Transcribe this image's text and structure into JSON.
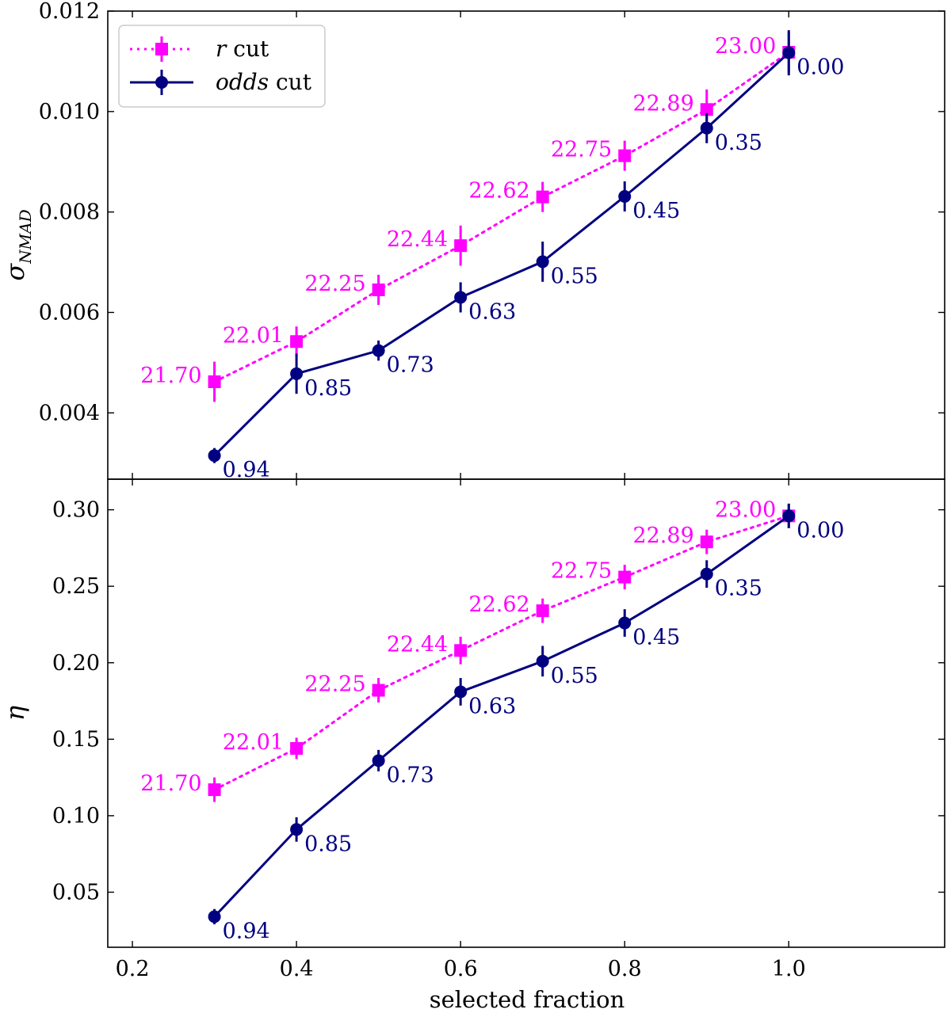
{
  "chart_data": [
    {
      "type": "line",
      "panel": "top",
      "ylabel_symbol": "σ",
      "ylabel_subscript": "NMAD",
      "xlim": [
        0.17,
        1.19
      ],
      "ylim": [
        0.00268,
        0.012
      ],
      "yticks": [
        0.004,
        0.006,
        0.008,
        0.01,
        0.012
      ],
      "ytick_labels": [
        "0.004",
        "0.006",
        "0.008",
        "0.010",
        "0.012"
      ],
      "xticks": [
        0.2,
        0.4,
        0.6,
        0.8,
        1.0
      ],
      "legend": {
        "location": "upper-left",
        "entries": [
          {
            "series": "r",
            "prefix": "r",
            "suffix": " cut"
          },
          {
            "series": "odds",
            "prefix": "odds",
            "suffix": " cut"
          }
        ]
      },
      "series": [
        {
          "name": "r cut",
          "color": "#ff00ff",
          "marker": "square",
          "linestyle": "dotted",
          "x": [
            0.3,
            0.4,
            0.5,
            0.6,
            0.7,
            0.8,
            0.9,
            1.0
          ],
          "y": [
            0.00462,
            0.00542,
            0.00645,
            0.00733,
            0.0083,
            0.00912,
            0.01004,
            0.01118
          ],
          "yerr": [
            0.0004,
            0.0003,
            0.0003,
            0.0004,
            0.0003,
            0.0003,
            0.0004,
            0.0004
          ],
          "labels": [
            "21.70",
            "22.01",
            "22.25",
            "22.44",
            "22.62",
            "22.75",
            "22.89",
            "23.00"
          ]
        },
        {
          "name": "odds cut",
          "color": "#000080",
          "marker": "circle",
          "linestyle": "solid",
          "x": [
            0.3,
            0.4,
            0.5,
            0.6,
            0.7,
            0.8,
            0.9,
            1.0
          ],
          "y": [
            0.00315,
            0.00478,
            0.00524,
            0.0063,
            0.00701,
            0.00831,
            0.00967,
            0.01117
          ],
          "yerr": [
            0.00015,
            0.0004,
            0.0002,
            0.0003,
            0.0004,
            0.0003,
            0.0003,
            0.00045
          ],
          "labels": [
            "0.94",
            "0.85",
            "0.73",
            "0.63",
            "0.55",
            "0.45",
            "0.35",
            "0.00"
          ]
        }
      ]
    },
    {
      "type": "line",
      "panel": "bottom",
      "ylabel_symbol": "η",
      "xlabel": "selected fraction",
      "xlim": [
        0.17,
        1.19
      ],
      "ylim": [
        0.014,
        0.32
      ],
      "yticks": [
        0.05,
        0.1,
        0.15,
        0.2,
        0.25,
        0.3
      ],
      "ytick_labels": [
        "0.05",
        "0.10",
        "0.15",
        "0.20",
        "0.25",
        "0.30"
      ],
      "xticks": [
        0.2,
        0.4,
        0.6,
        0.8,
        1.0
      ],
      "xtick_labels": [
        "0.2",
        "0.4",
        "0.6",
        "0.8",
        "1.0"
      ],
      "series": [
        {
          "name": "r cut",
          "color": "#ff00ff",
          "marker": "square",
          "linestyle": "dotted",
          "x": [
            0.3,
            0.4,
            0.5,
            0.6,
            0.7,
            0.8,
            0.9,
            1.0
          ],
          "y": [
            0.117,
            0.144,
            0.182,
            0.208,
            0.234,
            0.256,
            0.279,
            0.296
          ],
          "yerr": [
            0.008,
            0.007,
            0.008,
            0.009,
            0.008,
            0.008,
            0.008,
            0.008
          ],
          "labels": [
            "21.70",
            "22.01",
            "22.25",
            "22.44",
            "22.62",
            "22.75",
            "22.89",
            "23.00"
          ]
        },
        {
          "name": "odds cut",
          "color": "#000080",
          "marker": "circle",
          "linestyle": "solid",
          "x": [
            0.3,
            0.4,
            0.5,
            0.6,
            0.7,
            0.8,
            0.9,
            1.0
          ],
          "y": [
            0.034,
            0.091,
            0.136,
            0.181,
            0.201,
            0.226,
            0.258,
            0.296
          ],
          "yerr": [
            0.005,
            0.008,
            0.007,
            0.009,
            0.01,
            0.009,
            0.009,
            0.008
          ],
          "labels": [
            "0.94",
            "0.85",
            "0.73",
            "0.63",
            "0.55",
            "0.45",
            "0.35",
            "0.00"
          ]
        }
      ]
    }
  ]
}
